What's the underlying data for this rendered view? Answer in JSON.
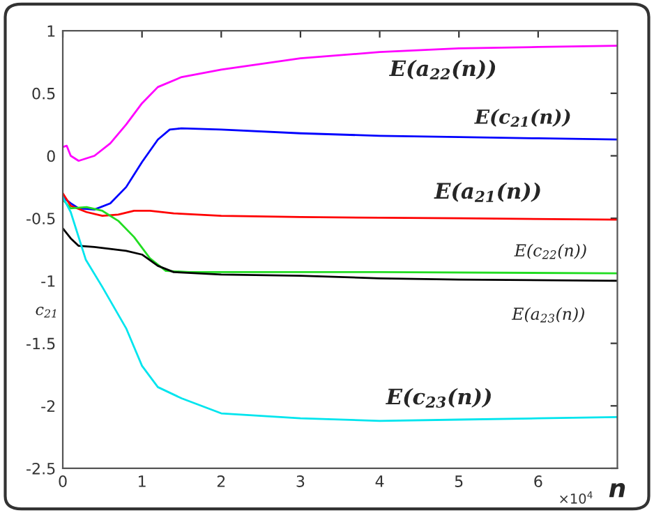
{
  "chart_data": {
    "type": "line",
    "xlabel": "n",
    "ylabel": "c$_{21}$",
    "xlim": [
      0,
      7
    ],
    "xticks": [
      0,
      1,
      2,
      3,
      4,
      5,
      6
    ],
    "ylim": [
      -2.5,
      1
    ],
    "yticks": [
      -2.5,
      -2,
      -1.5,
      -1,
      -0.5,
      0,
      0.5,
      1
    ],
    "grid": false,
    "legend": false,
    "series": [
      {
        "color": "#ff00ff",
        "x": [
          0,
          0.05,
          0.1,
          0.2,
          0.4,
          0.6,
          0.8,
          1.0,
          1.2,
          1.5,
          2,
          3,
          4,
          5,
          6,
          7
        ],
        "values": [
          0.07,
          0.08,
          0.0,
          -0.04,
          0.0,
          0.1,
          0.25,
          0.42,
          0.55,
          0.63,
          0.69,
          0.78,
          0.83,
          0.86,
          0.87,
          0.88
        ]
      },
      {
        "color": "#0000ff",
        "x": [
          0,
          0.1,
          0.2,
          0.4,
          0.6,
          0.8,
          1.0,
          1.2,
          1.35,
          1.5,
          2,
          3,
          4,
          5,
          6,
          7
        ],
        "values": [
          -0.33,
          -0.38,
          -0.42,
          -0.43,
          -0.38,
          -0.25,
          -0.05,
          0.13,
          0.21,
          0.22,
          0.21,
          0.18,
          0.16,
          0.15,
          0.14,
          0.13
        ]
      },
      {
        "color": "#ff0000",
        "x": [
          0,
          0.1,
          0.3,
          0.5,
          0.7,
          0.9,
          1.1,
          1.4,
          2,
          3,
          5,
          7
        ],
        "values": [
          -0.3,
          -0.4,
          -0.45,
          -0.48,
          -0.47,
          -0.44,
          -0.44,
          -0.46,
          -0.48,
          -0.49,
          -0.5,
          -0.51
        ]
      },
      {
        "color": "#22dd22",
        "x": [
          0,
          0.1,
          0.3,
          0.5,
          0.7,
          0.9,
          1.1,
          1.3,
          1.6,
          2,
          4,
          7
        ],
        "values": [
          -0.35,
          -0.42,
          -0.41,
          -0.44,
          -0.52,
          -0.65,
          -0.82,
          -0.92,
          -0.93,
          -0.93,
          -0.93,
          -0.94
        ]
      },
      {
        "color": "#000000",
        "x": [
          0,
          0.1,
          0.2,
          0.4,
          0.8,
          1.0,
          1.2,
          1.4,
          2,
          3,
          4,
          5,
          7
        ],
        "values": [
          -0.58,
          -0.66,
          -0.72,
          -0.73,
          -0.76,
          -0.79,
          -0.88,
          -0.93,
          -0.95,
          -0.96,
          -0.98,
          -0.99,
          -1.0
        ]
      },
      {
        "color": "#00e5ee",
        "x": [
          0,
          0.1,
          0.29,
          0.5,
          0.8,
          1.0,
          1.2,
          1.5,
          2,
          3,
          4,
          5,
          6,
          7
        ],
        "values": [
          -0.33,
          -0.45,
          -0.83,
          -1.05,
          -1.38,
          -1.68,
          -1.85,
          -1.94,
          -2.06,
          -2.1,
          -2.12,
          -2.11,
          -2.1,
          -2.09
        ]
      }
    ],
    "annotations": [
      "E(a$_{22}$(n))",
      "E(c$_{21}$(n))",
      "E(a$_{21}$(n))",
      "E(c$_{22}$(n))",
      "E(a$_{23}$(n))",
      "E(c$_{23}$(n))",
      "×10$^{4}$"
    ]
  }
}
